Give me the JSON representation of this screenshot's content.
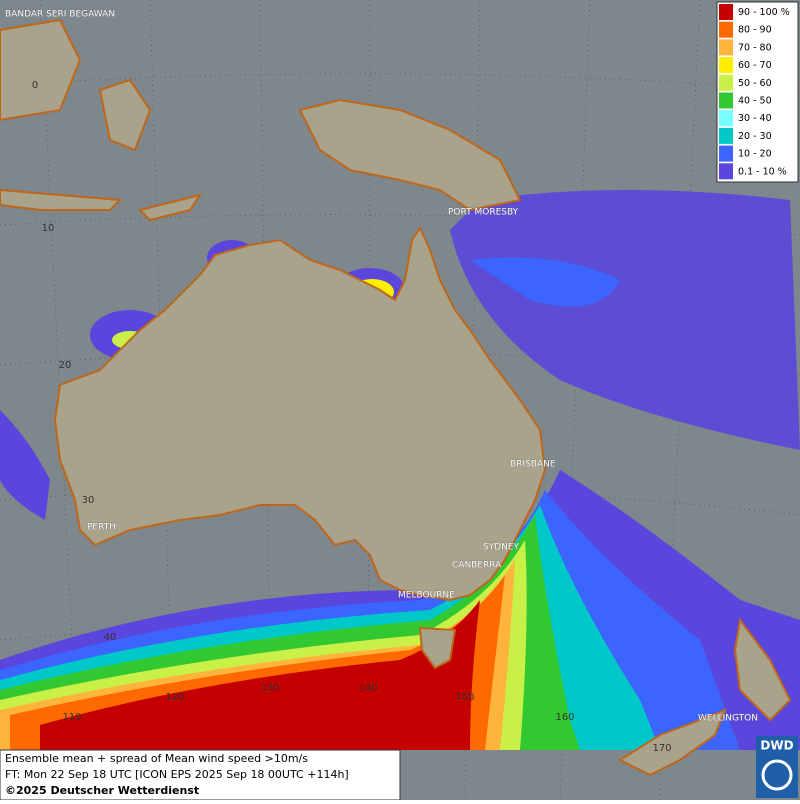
{
  "footer": {
    "line1": "Ensemble mean + spread of Mean wind speed >10m/s",
    "line2": "FT: Mon 22 Sep 18 UTC [ICON EPS 2025 Sep 18 00UTC +114h]",
    "line3": "©2025 Deutscher Wetterdienst"
  },
  "logo": {
    "text": "DWD"
  },
  "legend": [
    {
      "label": "90 - 100 %",
      "color": "#c40000"
    },
    {
      "label": "80 - 90",
      "color": "#ff6a00"
    },
    {
      "label": "70 - 80",
      "color": "#ffb43c"
    },
    {
      "label": "60 - 70",
      "color": "#ffee00"
    },
    {
      "label": "50 - 60",
      "color": "#c8f046"
    },
    {
      "label": "40 - 50",
      "color": "#32c832"
    },
    {
      "label": "30 - 40",
      "color": "#78ffff"
    },
    {
      "label": "20 - 30",
      "color": "#00c8c8"
    },
    {
      "label": "10 - 20",
      "color": "#3c64ff"
    },
    {
      "label": "0.1 - 10 %",
      "color": "#5a46dc"
    }
  ],
  "cities": [
    "BANDAR SERI BEGAWAN",
    "PORT MORESBY",
    "BRISBANE",
    "SYDNEY",
    "CANBERRA",
    "MELBOURNE",
    "PERTH",
    "WELLINGTON"
  ],
  "graticule": {
    "lat_labels": [
      "0",
      "10",
      "20",
      "30",
      "40"
    ],
    "lon_labels": [
      "110",
      "120",
      "130",
      "140",
      "150",
      "160",
      "170"
    ]
  }
}
